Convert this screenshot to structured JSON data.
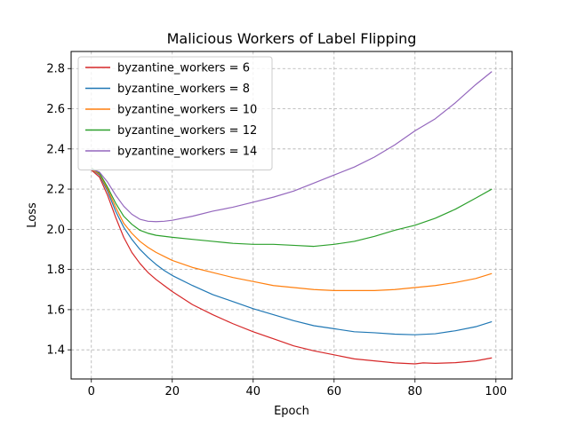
{
  "chart_data": {
    "type": "line",
    "title": "Malicious Workers of Label Flipping",
    "xlabel": "Epoch",
    "ylabel": "Loss",
    "xlim": [
      -5,
      104
    ],
    "ylim": [
      1.255,
      2.885
    ],
    "xticks": [
      0,
      20,
      40,
      60,
      80,
      100
    ],
    "yticks": [
      1.4,
      1.6,
      1.8,
      2.0,
      2.2,
      2.4,
      2.6,
      2.8
    ],
    "xtick_labels": [
      "0",
      "20",
      "40",
      "60",
      "80",
      "100"
    ],
    "ytick_labels": [
      "1.4",
      "1.6",
      "1.8",
      "2.0",
      "2.2",
      "2.4",
      "2.6",
      "2.8"
    ],
    "grid": true,
    "legend_position": "upper-left",
    "series": [
      {
        "name": "byzantine_workers = 6",
        "color": "#d62728",
        "x": [
          0,
          2,
          4,
          6,
          8,
          10,
          12,
          14,
          16,
          18,
          20,
          25,
          30,
          35,
          40,
          45,
          50,
          55,
          60,
          65,
          70,
          75,
          80,
          82,
          85,
          90,
          95,
          99
        ],
        "y": [
          2.295,
          2.26,
          2.17,
          2.06,
          1.96,
          1.885,
          1.83,
          1.785,
          1.75,
          1.72,
          1.69,
          1.625,
          1.575,
          1.53,
          1.49,
          1.455,
          1.42,
          1.395,
          1.375,
          1.355,
          1.345,
          1.335,
          1.33,
          1.335,
          1.333,
          1.336,
          1.345,
          1.36
        ]
      },
      {
        "name": "byzantine_workers = 8",
        "color": "#1f77b4",
        "x": [
          0,
          2,
          4,
          6,
          8,
          10,
          12,
          14,
          16,
          18,
          20,
          25,
          30,
          35,
          40,
          45,
          50,
          55,
          60,
          65,
          70,
          75,
          80,
          85,
          90,
          95,
          99
        ],
        "y": [
          2.3,
          2.27,
          2.19,
          2.09,
          2.01,
          1.95,
          1.9,
          1.86,
          1.825,
          1.795,
          1.77,
          1.72,
          1.675,
          1.64,
          1.605,
          1.575,
          1.545,
          1.52,
          1.505,
          1.49,
          1.485,
          1.478,
          1.475,
          1.48,
          1.495,
          1.515,
          1.54
        ]
      },
      {
        "name": "byzantine_workers = 10",
        "color": "#ff7f0e",
        "x": [
          0,
          2,
          4,
          6,
          8,
          10,
          12,
          14,
          16,
          18,
          20,
          25,
          30,
          35,
          40,
          45,
          50,
          55,
          60,
          65,
          70,
          75,
          80,
          85,
          90,
          95,
          99
        ],
        "y": [
          2.3,
          2.275,
          2.2,
          2.11,
          2.03,
          1.98,
          1.94,
          1.91,
          1.885,
          1.865,
          1.845,
          1.81,
          1.785,
          1.76,
          1.74,
          1.72,
          1.71,
          1.7,
          1.695,
          1.695,
          1.695,
          1.7,
          1.71,
          1.72,
          1.735,
          1.755,
          1.78
        ]
      },
      {
        "name": "byzantine_workers = 12",
        "color": "#2ca02c",
        "x": [
          0,
          2,
          4,
          6,
          8,
          10,
          12,
          14,
          16,
          18,
          20,
          25,
          30,
          35,
          40,
          45,
          50,
          55,
          60,
          65,
          70,
          75,
          80,
          85,
          90,
          95,
          99
        ],
        "y": [
          2.305,
          2.28,
          2.21,
          2.13,
          2.065,
          2.025,
          1.995,
          1.98,
          1.97,
          1.965,
          1.96,
          1.95,
          1.94,
          1.93,
          1.925,
          1.925,
          1.92,
          1.915,
          1.925,
          1.94,
          1.965,
          1.995,
          2.02,
          2.055,
          2.1,
          2.155,
          2.2
        ]
      },
      {
        "name": "byzantine_workers = 14",
        "color": "#9467bd",
        "x": [
          0,
          2,
          4,
          6,
          8,
          10,
          12,
          14,
          16,
          18,
          20,
          25,
          30,
          35,
          40,
          45,
          50,
          55,
          60,
          65,
          70,
          75,
          80,
          85,
          90,
          95,
          99
        ],
        "y": [
          2.3,
          2.285,
          2.235,
          2.17,
          2.115,
          2.075,
          2.05,
          2.04,
          2.038,
          2.04,
          2.045,
          2.065,
          2.09,
          2.11,
          2.135,
          2.16,
          2.19,
          2.23,
          2.27,
          2.31,
          2.36,
          2.42,
          2.49,
          2.55,
          2.63,
          2.72,
          2.785
        ]
      }
    ]
  }
}
